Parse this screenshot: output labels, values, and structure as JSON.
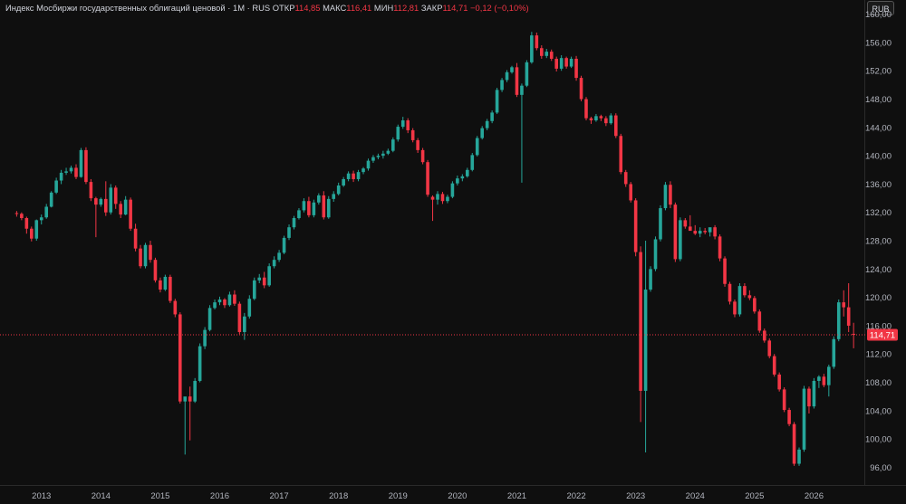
{
  "legend": {
    "name": "Индекс Мосбиржи государственных облигаций ценовой",
    "interval": "1M",
    "exchange": "RUS",
    "open_label": "ОТКР",
    "open": "114,85",
    "high_label": "МАКС",
    "high": "116,41",
    "low_label": "МИН",
    "low": "112,81",
    "close_label": "ЗАКР",
    "close": "114,71",
    "change": "−0,12 (−0,10%)"
  },
  "currency_button": "RUB",
  "price_label": "114,71",
  "colors": {
    "up": "#26a69a",
    "down": "#f23645",
    "background": "#0f0f0f",
    "price_line": "#f23645"
  },
  "chart_data": {
    "type": "candlestick",
    "y_ticks": [
      "160,00",
      "156,00",
      "152,00",
      "148,00",
      "144,00",
      "140,00",
      "136,00",
      "132,00",
      "128,00",
      "124,00",
      "120,00",
      "116,00",
      "112,00",
      "108,00",
      "104,00",
      "100,00",
      "96,00"
    ],
    "x_ticks": [
      "2013",
      "2014",
      "2015",
      "2016",
      "2017",
      "2018",
      "2019",
      "2020",
      "2021",
      "2022",
      "2023",
      "2024",
      "2025",
      "2026"
    ],
    "ylim": [
      93.5,
      162
    ],
    "last_price": 114.71,
    "grid": false,
    "start": "2012-08",
    "candles": [
      [
        131.9,
        132.2,
        131.4,
        131.8
      ],
      [
        131.8,
        132.0,
        130.9,
        131.2
      ],
      [
        131.2,
        131.4,
        129.0,
        129.7
      ],
      [
        129.7,
        130.0,
        127.9,
        128.3
      ],
      [
        128.3,
        131.0,
        128.0,
        130.9
      ],
      [
        130.9,
        131.7,
        130.3,
        131.3
      ],
      [
        131.3,
        133.2,
        131.1,
        132.8
      ],
      [
        132.8,
        135.0,
        132.7,
        134.8
      ],
      [
        134.8,
        136.9,
        134.6,
        136.5
      ],
      [
        136.5,
        138.0,
        136.0,
        137.6
      ],
      [
        137.6,
        138.3,
        137.3,
        137.8
      ],
      [
        137.8,
        138.6,
        137.5,
        138.3
      ],
      [
        138.3,
        138.8,
        136.7,
        137.0
      ],
      [
        137.0,
        141.1,
        136.9,
        140.8
      ],
      [
        140.8,
        141.2,
        136.0,
        136.3
      ],
      [
        136.3,
        136.7,
        133.6,
        134.0
      ],
      [
        134.0,
        134.2,
        128.5,
        133.1
      ],
      [
        133.1,
        134.1,
        132.8,
        133.9
      ],
      [
        133.9,
        136.4,
        131.5,
        132.0
      ],
      [
        132.0,
        136.0,
        131.7,
        135.5
      ],
      [
        135.5,
        135.8,
        132.5,
        133.2
      ],
      [
        133.2,
        133.6,
        131.2,
        131.7
      ],
      [
        131.7,
        134.3,
        131.6,
        133.8
      ],
      [
        133.8,
        134.1,
        129.4,
        129.7
      ],
      [
        129.7,
        130.4,
        126.5,
        126.9
      ],
      [
        126.9,
        127.4,
        124.1,
        124.4
      ],
      [
        124.4,
        127.7,
        124.1,
        127.4
      ],
      [
        127.4,
        128.0,
        124.9,
        125.3
      ],
      [
        125.3,
        125.6,
        122.1,
        122.4
      ],
      [
        122.4,
        122.8,
        120.7,
        121.1
      ],
      [
        121.1,
        123.2,
        120.9,
        122.9
      ],
      [
        122.9,
        123.2,
        119.2,
        119.5
      ],
      [
        119.5,
        119.8,
        117.2,
        117.6
      ],
      [
        117.6,
        117.9,
        105.0,
        105.3
      ],
      [
        105.3,
        105.6,
        97.8,
        106.0
      ],
      [
        106.0,
        107.4,
        99.8,
        105.3
      ],
      [
        105.3,
        108.6,
        105.1,
        108.2
      ],
      [
        108.2,
        113.5,
        108.0,
        113.1
      ],
      [
        113.1,
        115.8,
        112.7,
        115.4
      ],
      [
        115.4,
        118.9,
        115.2,
        118.5
      ],
      [
        118.5,
        119.7,
        118.3,
        119.3
      ],
      [
        119.3,
        120.1,
        118.9,
        119.7
      ],
      [
        119.7,
        119.9,
        118.5,
        118.9
      ],
      [
        118.9,
        120.8,
        118.7,
        120.4
      ],
      [
        120.4,
        121.0,
        118.8,
        119.1
      ],
      [
        119.1,
        119.4,
        114.8,
        115.1
      ],
      [
        115.1,
        117.8,
        114.0,
        117.3
      ],
      [
        117.3,
        120.3,
        117.0,
        119.8
      ],
      [
        119.8,
        122.8,
        119.6,
        122.4
      ],
      [
        122.4,
        123.3,
        122.0,
        122.8
      ],
      [
        122.8,
        123.6,
        121.3,
        121.7
      ],
      [
        121.7,
        124.8,
        121.5,
        124.4
      ],
      [
        124.4,
        125.8,
        124.1,
        125.3
      ],
      [
        125.3,
        126.7,
        125.0,
        126.3
      ],
      [
        126.3,
        128.7,
        126.1,
        128.4
      ],
      [
        128.4,
        130.3,
        128.1,
        129.9
      ],
      [
        129.9,
        131.5,
        129.6,
        131.2
      ],
      [
        131.2,
        132.6,
        131.0,
        132.3
      ],
      [
        132.3,
        134.0,
        132.0,
        133.6
      ],
      [
        133.6,
        134.2,
        131.3,
        131.6
      ],
      [
        131.6,
        133.8,
        131.3,
        133.4
      ],
      [
        133.4,
        134.7,
        133.1,
        134.4
      ],
      [
        134.4,
        135.0,
        131.0,
        131.3
      ],
      [
        131.3,
        134.3,
        131.1,
        133.9
      ],
      [
        133.9,
        135.0,
        133.5,
        134.6
      ],
      [
        134.6,
        136.2,
        134.4,
        135.8
      ],
      [
        135.8,
        137.0,
        135.6,
        136.7
      ],
      [
        136.7,
        137.8,
        136.4,
        137.5
      ],
      [
        137.5,
        137.9,
        136.3,
        136.7
      ],
      [
        136.7,
        138.0,
        136.4,
        137.7
      ],
      [
        137.7,
        138.4,
        137.4,
        138.2
      ],
      [
        138.2,
        139.6,
        137.9,
        139.3
      ],
      [
        139.3,
        140.1,
        139.0,
        139.8
      ],
      [
        139.8,
        140.3,
        139.5,
        140.0
      ],
      [
        140.0,
        140.7,
        139.6,
        140.3
      ],
      [
        140.3,
        141.0,
        140.1,
        140.7
      ],
      [
        140.7,
        142.6,
        140.5,
        142.3
      ],
      [
        142.3,
        144.4,
        142.0,
        144.1
      ],
      [
        144.1,
        145.5,
        143.8,
        145.0
      ],
      [
        145.0,
        145.3,
        143.2,
        143.6
      ],
      [
        143.6,
        143.9,
        141.9,
        142.2
      ],
      [
        142.2,
        142.5,
        140.4,
        140.8
      ],
      [
        140.8,
        141.1,
        138.8,
        139.1
      ],
      [
        139.1,
        139.4,
        134.2,
        134.5
      ],
      [
        134.2,
        134.4,
        130.8,
        133.8
      ],
      [
        133.8,
        135.0,
        133.1,
        134.6
      ],
      [
        134.6,
        134.9,
        133.2,
        133.6
      ],
      [
        133.6,
        134.5,
        133.3,
        134.2
      ],
      [
        134.2,
        136.4,
        134.0,
        136.1
      ],
      [
        136.1,
        137.2,
        135.8,
        136.8
      ],
      [
        136.8,
        137.4,
        136.4,
        137.1
      ],
      [
        137.1,
        138.3,
        136.9,
        138.0
      ],
      [
        138.0,
        140.4,
        137.8,
        140.1
      ],
      [
        140.1,
        142.8,
        139.9,
        142.5
      ],
      [
        142.5,
        144.2,
        142.3,
        143.9
      ],
      [
        143.9,
        145.2,
        143.6,
        144.9
      ],
      [
        144.9,
        146.4,
        144.6,
        146.1
      ],
      [
        146.1,
        149.6,
        145.9,
        149.3
      ],
      [
        149.3,
        151.0,
        149.0,
        150.7
      ],
      [
        150.7,
        152.1,
        150.4,
        151.8
      ],
      [
        151.8,
        152.7,
        151.6,
        152.5
      ],
      [
        152.5,
        153.1,
        148.3,
        148.6
      ],
      [
        148.6,
        150.2,
        136.2,
        149.9
      ],
      [
        149.9,
        153.5,
        149.7,
        153.2
      ],
      [
        153.2,
        157.5,
        153.0,
        157.0
      ],
      [
        157.0,
        157.4,
        154.9,
        155.2
      ],
      [
        155.2,
        155.6,
        153.7,
        154.1
      ],
      [
        154.1,
        155.1,
        153.8,
        154.7
      ],
      [
        154.7,
        155.0,
        153.4,
        153.7
      ],
      [
        153.7,
        154.0,
        151.9,
        152.3
      ],
      [
        152.3,
        154.2,
        152.0,
        153.8
      ],
      [
        153.8,
        154.0,
        152.3,
        152.6
      ],
      [
        152.6,
        154.0,
        152.4,
        153.7
      ],
      [
        153.7,
        154.1,
        150.6,
        151.0
      ],
      [
        151.0,
        151.3,
        147.7,
        148.0
      ],
      [
        148.0,
        148.3,
        145.0,
        145.3
      ],
      [
        145.3,
        145.5,
        144.5,
        145.0
      ],
      [
        145.0,
        145.9,
        144.8,
        145.6
      ],
      [
        145.6,
        145.8,
        144.9,
        145.3
      ],
      [
        145.3,
        145.6,
        144.2,
        144.6
      ],
      [
        144.6,
        146.0,
        144.4,
        145.7
      ],
      [
        145.7,
        146.0,
        142.5,
        142.8
      ],
      [
        142.8,
        143.1,
        137.4,
        137.7
      ],
      [
        137.7,
        138.0,
        135.6,
        136.0
      ],
      [
        136.0,
        136.3,
        133.4,
        133.7
      ],
      [
        133.7,
        134.0,
        125.8,
        126.4
      ],
      [
        126.4,
        127.2,
        102.4,
        106.8
      ],
      [
        106.8,
        128.0,
        98.1,
        121.1
      ],
      [
        121.1,
        124.4,
        120.8,
        124.0
      ],
      [
        124.0,
        128.6,
        123.7,
        128.2
      ],
      [
        128.2,
        133.0,
        127.9,
        132.6
      ],
      [
        132.6,
        136.3,
        132.3,
        135.9
      ],
      [
        135.9,
        136.4,
        132.6,
        133.1
      ],
      [
        133.1,
        133.4,
        125.0,
        125.4
      ],
      [
        125.4,
        131.3,
        125.1,
        130.9
      ],
      [
        130.9,
        131.2,
        129.7,
        130.0
      ],
      [
        130.0,
        131.6,
        129.7,
        129.4
      ],
      [
        129.4,
        130.2,
        128.8,
        129.0
      ],
      [
        129.0,
        129.9,
        128.5,
        129.4
      ],
      [
        129.4,
        129.8,
        128.9,
        129.2
      ],
      [
        129.2,
        129.4,
        128.6,
        129.9
      ],
      [
        129.9,
        130.2,
        128.2,
        128.6
      ],
      [
        128.6,
        128.9,
        125.1,
        125.5
      ],
      [
        125.5,
        125.8,
        121.5,
        121.9
      ],
      [
        121.9,
        122.2,
        119.0,
        119.4
      ],
      [
        119.4,
        119.7,
        117.2,
        117.6
      ],
      [
        117.6,
        122.0,
        117.3,
        121.6
      ],
      [
        121.6,
        122.0,
        120.0,
        120.3
      ],
      [
        120.3,
        121.0,
        119.6,
        119.9
      ],
      [
        119.9,
        120.2,
        117.7,
        118.0
      ],
      [
        118.0,
        118.3,
        115.0,
        115.3
      ],
      [
        115.3,
        115.6,
        113.6,
        113.9
      ],
      [
        113.9,
        114.2,
        111.4,
        111.7
      ],
      [
        111.7,
        112.0,
        108.8,
        109.1
      ],
      [
        109.1,
        109.4,
        106.7,
        107.0
      ],
      [
        107.0,
        107.3,
        103.8,
        104.1
      ],
      [
        104.1,
        104.4,
        101.8,
        102.1
      ],
      [
        102.1,
        102.4,
        96.2,
        96.5
      ],
      [
        96.5,
        98.8,
        96.2,
        98.5
      ],
      [
        98.5,
        107.5,
        98.2,
        107.1
      ],
      [
        107.1,
        107.4,
        103.6,
        104.6
      ],
      [
        104.6,
        108.6,
        104.3,
        108.2
      ],
      [
        108.2,
        109.0,
        107.2,
        108.8
      ],
      [
        108.8,
        109.2,
        107.3,
        107.6
      ],
      [
        107.6,
        110.5,
        106.0,
        110.2
      ],
      [
        110.2,
        114.5,
        109.9,
        114.1
      ],
      [
        114.1,
        119.7,
        113.8,
        119.3
      ],
      [
        119.3,
        121.0,
        117.3,
        118.6
      ],
      [
        118.6,
        122.0,
        115.1,
        116.0
      ],
      [
        114.85,
        116.41,
        112.81,
        114.71
      ]
    ]
  }
}
